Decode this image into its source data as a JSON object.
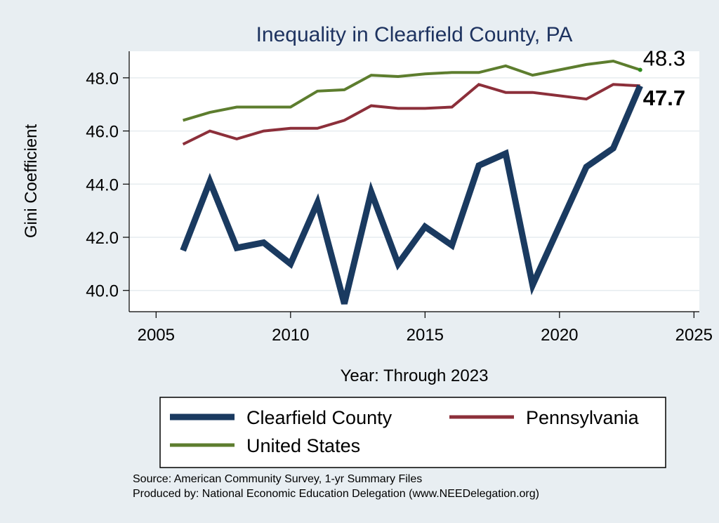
{
  "chart_data": {
    "type": "line",
    "title": "Inequality in Clearfield County, PA",
    "xlabel": "Year: Through 2023",
    "ylabel": "Gini Coefficient",
    "xlim": [
      2004,
      2025.2
    ],
    "ylim": [
      39.2,
      49.0
    ],
    "xticks": [
      2005,
      2010,
      2015,
      2020,
      2025
    ],
    "xtick_labels": [
      "2005",
      "2010",
      "2015",
      "2020",
      "2025"
    ],
    "yticks": [
      40,
      42,
      44,
      46,
      48
    ],
    "ytick_labels": [
      "40.0",
      "42.0",
      "44.0",
      "46.0",
      "48.0"
    ],
    "grid": true,
    "series": [
      {
        "key": "us",
        "name": "United States",
        "color": "#5d7d2e",
        "x": [
          2006,
          2007,
          2008,
          2009,
          2010,
          2011,
          2012,
          2013,
          2014,
          2015,
          2016,
          2017,
          2018,
          2019,
          2020,
          2021,
          2022,
          2023
        ],
        "values": [
          46.4,
          46.7,
          46.9,
          46.9,
          46.9,
          47.5,
          47.55,
          48.1,
          48.05,
          48.15,
          48.2,
          48.2,
          48.45,
          48.1,
          48.3,
          48.5,
          48.63,
          48.3
        ]
      },
      {
        "key": "pa",
        "name": "Pennsylvania",
        "color": "#8c2f3a",
        "x": [
          2006,
          2007,
          2008,
          2009,
          2010,
          2011,
          2012,
          2013,
          2014,
          2015,
          2016,
          2017,
          2018,
          2019,
          2021,
          2022,
          2023
        ],
        "values": [
          45.5,
          46.0,
          45.7,
          46.0,
          46.1,
          46.1,
          46.4,
          46.95,
          46.85,
          46.85,
          46.9,
          47.75,
          47.45,
          47.45,
          47.2,
          47.75,
          47.7
        ]
      },
      {
        "key": "county",
        "name": "Clearfield County",
        "color": "#1a3a60",
        "x": [
          2006,
          2007,
          2008,
          2009,
          2010,
          2011,
          2012,
          2013,
          2014,
          2015,
          2016,
          2017,
          2018,
          2019,
          2021,
          2022,
          2023
        ],
        "values": [
          41.5,
          44.1,
          41.6,
          41.8,
          41.0,
          43.3,
          39.5,
          43.7,
          41.0,
          42.4,
          41.7,
          44.7,
          45.15,
          40.2,
          44.65,
          45.35,
          47.7
        ]
      }
    ],
    "end_labels": [
      {
        "series": "us",
        "text": "48.3",
        "bold": false
      },
      {
        "series": "county",
        "text": "47.7",
        "bold": true
      }
    ],
    "legend": {
      "placement": "bottom",
      "items": [
        "Clearfield County",
        "Pennsylvania",
        "United States"
      ]
    }
  },
  "source_note": {
    "line1": "Source: American Community Survey, 1-yr Summary Files",
    "line2": "Produced by: National Economic Education Delegation (www.NEEDelegation.org)"
  }
}
